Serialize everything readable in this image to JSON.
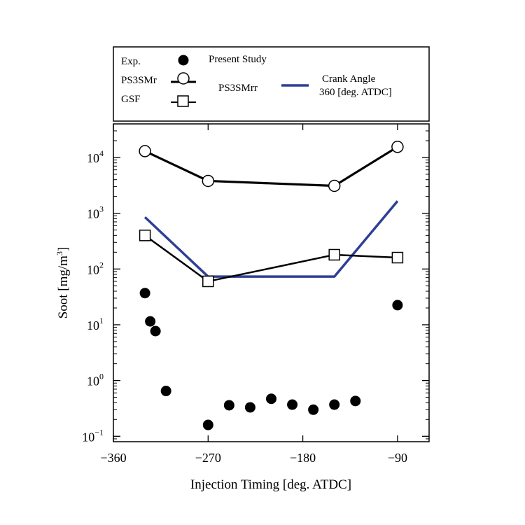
{
  "chart_data": {
    "type": "scatter",
    "xlabel": "Injection Timing [deg. ATDC]",
    "ylabel_main": "Soot [mg/m",
    "ylabel_sup": "3",
    "ylabel_close": "]",
    "xlim": [
      -360,
      -60
    ],
    "ylim": [
      0.08,
      40000
    ],
    "yscale": "log",
    "x_ticks": [
      -360,
      -270,
      -180,
      -90
    ],
    "x_tick_labels": [
      "−360",
      "−270",
      "−180",
      "−90"
    ],
    "y_ticks": [
      {
        "value": 0.1,
        "base": "10",
        "exp": "−1"
      },
      {
        "value": 1,
        "base": "10",
        "exp": "0"
      },
      {
        "value": 10,
        "base": "10",
        "exp": "1"
      },
      {
        "value": 100,
        "base": "10",
        "exp": "2"
      },
      {
        "value": 1000,
        "base": "10",
        "exp": "3"
      },
      {
        "value": 10000,
        "base": "10",
        "exp": "4"
      }
    ],
    "series": [
      {
        "name": "Exp.",
        "style": "filled-circle",
        "color": "#000000",
        "x": [
          -330,
          -325,
          -320,
          -310,
          -270,
          -250,
          -230,
          -210,
          -190,
          -170,
          -150,
          -130,
          -90
        ],
        "y": [
          37,
          11.5,
          7.7,
          0.65,
          0.16,
          0.36,
          0.33,
          0.47,
          0.37,
          0.3,
          0.37,
          0.43,
          22.5
        ]
      },
      {
        "name": "PS3SMr",
        "style": "line-open-circle",
        "color": "#000000",
        "x": [
          -330,
          -270,
          -150,
          -90
        ],
        "y": [
          13000,
          3800,
          3100,
          15500
        ]
      },
      {
        "name": "GSF",
        "style": "line-open-square",
        "color": "#000000",
        "x": [
          -330,
          -270,
          -150,
          -90
        ],
        "y": [
          400,
          60,
          180,
          160
        ]
      },
      {
        "name": "PS3SMrr",
        "style": "line",
        "color": "#2e3f95",
        "x": [
          -330,
          -270,
          -150,
          -90
        ],
        "y": [
          850,
          73,
          73,
          1650
        ]
      }
    ],
    "legend": {
      "placement": "top",
      "exp_label": "Exp.",
      "present_study_label": "Present Study",
      "ps3smr_label": "PS3SMr",
      "gsf_label": "GSF",
      "ps3smrr_label": "PS3SMrr",
      "crank_angle_line1": "Crank Angle",
      "crank_angle_line2": "360 [deg. ATDC]"
    }
  }
}
